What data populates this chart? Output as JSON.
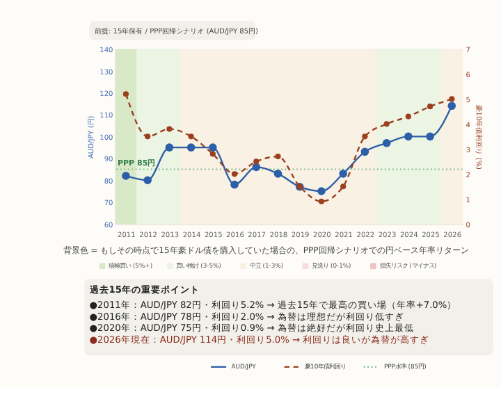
{
  "chart_data": {
    "type": "line",
    "title": "前提: 15年保有 / PPP回帰シナリオ (AUD/JPY 85円)",
    "x": [
      2011,
      2012,
      2013,
      2014,
      2015,
      2016,
      2017,
      2018,
      2019,
      2020,
      2021,
      2022,
      2023,
      2024,
      2025,
      2026
    ],
    "xlim": [
      2010.5,
      2026.5
    ],
    "xticks": [
      2011,
      2012,
      2013,
      2014,
      2015,
      2016,
      2017,
      2018,
      2019,
      2020,
      2021,
      2022,
      2023,
      2024,
      2025,
      2026
    ],
    "ylabel": "AUD/JPY (円)",
    "y2label": "豪10年債利回り (%)",
    "ylim": [
      60,
      140
    ],
    "yticks": [
      60,
      70,
      80,
      90,
      100,
      110,
      120,
      130,
      140
    ],
    "y2lim": [
      0,
      7
    ],
    "y2ticks": [
      0,
      1,
      2,
      3,
      4,
      5,
      6,
      7
    ],
    "series": [
      {
        "name": "AUD/JPY",
        "color": "#2c5fa8",
        "line_style": "solid",
        "values": [
          82,
          80,
          95,
          95,
          95,
          78,
          86,
          83,
          77,
          75,
          83,
          93,
          97,
          100,
          100,
          114
        ]
      },
      {
        "name": "豪10年債利回り",
        "color": "#9b3f1f",
        "line_style": "dashed",
        "axis": "y2",
        "values": [
          5.2,
          3.5,
          3.8,
          3.5,
          2.8,
          2.0,
          2.5,
          2.7,
          1.5,
          0.9,
          1.5,
          3.5,
          4.0,
          4.3,
          4.7,
          5.0
        ]
      }
    ],
    "marker": "circle",
    "grid": true,
    "legend": "bottom",
    "ref_lines": [
      {
        "axis": "y",
        "value": 85,
        "label": "PPP 85円",
        "color": "#7dbb8a",
        "line_style": "dotted"
      }
    ],
    "bands": [
      {
        "axis": "x",
        "from": 2010.5,
        "to": 2011.5,
        "label": "積極買い (5%+)",
        "color": "#d9e9c8"
      },
      {
        "axis": "x",
        "from": 2011.5,
        "to": 2013.5,
        "label": "買い検討 (3-5%)",
        "color": "#ecf4e4"
      },
      {
        "axis": "x",
        "from": 2013.5,
        "to": 2022.5,
        "label": "中立 (1-3%)",
        "color": "#f9f1e4"
      },
      {
        "axis": "x",
        "from": 2022.5,
        "to": 2025.5,
        "color": "#ecf4e4"
      },
      {
        "axis": "x",
        "from": 2025.5,
        "to": 2026.5,
        "color": "#f9f1e4"
      }
    ],
    "annotations": [
      "背景色 = もしその時点で15年豪ドル債を購入していた場合の、PPP回帰シナリオでの円ベース年率リターン",
      "見送り (0-1%)",
      "損失リスク (マイナス)",
      "過去15年の重要ポイント",
      "●2011年：AUD/JPY 82円・利回り5.2% → 過去15年で最高の買い場（年率+7.0%）",
      "●2016年：AUD/JPY 78円・利回り2.0% → 為替は理想だが利回り低すぎ",
      "●2020年：AUD/JPY 75円・利回り0.9% → 為替は絶好だが利回り史上最低",
      "●2026年現在：AUD/JPY 114円・利回り5.0% → 利回りは良いが為替が高すぎ",
      "PPP水準 (85円)"
    ]
  }
}
